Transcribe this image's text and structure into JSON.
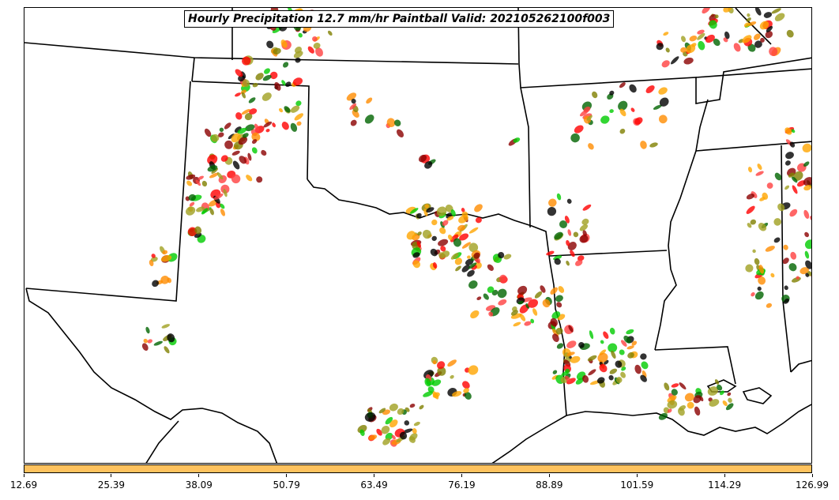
{
  "title": "Hourly Precipitation 12.7 mm/hr Paintball Valid: 202105262100f003",
  "colorbar": {
    "color": "#fec25e",
    "ticks": [
      "12.69",
      "25.39",
      "38.09",
      "50.79",
      "63.49",
      "76.19",
      "88.89",
      "101.59",
      "114.29",
      "126.99"
    ]
  },
  "member_colors": [
    "#ff0000",
    "#8b0000",
    "#ff8c00",
    "#ffa500",
    "#006400",
    "#00cc00",
    "#808000",
    "#a0a020",
    "#ff4040",
    "#000000"
  ],
  "map": {
    "background": "#ffffff",
    "boundary_color": "#000000",
    "states_drawn": [
      "Texas",
      "Oklahoma",
      "New Mexico",
      "Kansas",
      "Colorado",
      "Arkansas",
      "Louisiana",
      "Mississippi",
      "Missouri",
      "Alabama"
    ]
  }
}
